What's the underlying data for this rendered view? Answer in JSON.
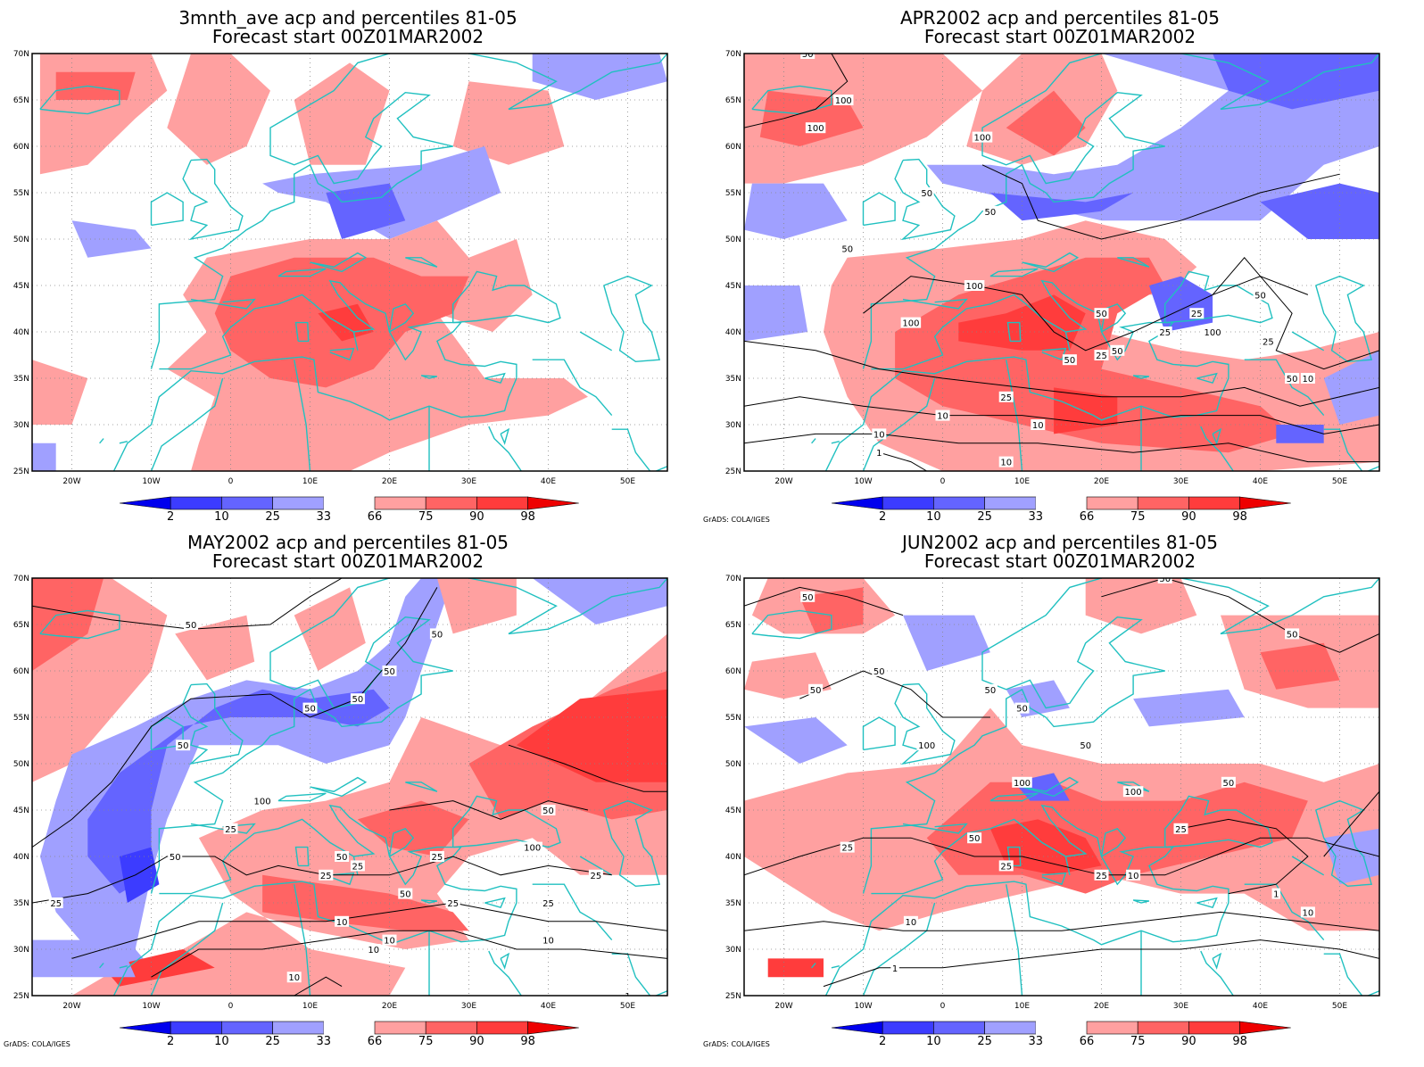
{
  "lat_labels": [
    "70N",
    "65N",
    "60N",
    "55N",
    "50N",
    "45N",
    "40N",
    "35N",
    "30N",
    "25N"
  ],
  "lon_labels": [
    "20W",
    "10W",
    "0",
    "10E",
    "20E",
    "30E",
    "40E",
    "50E"
  ],
  "colorbar": {
    "labels": [
      "2",
      "10",
      "25",
      "33",
      "66",
      "75",
      "90",
      "98"
    ],
    "colors": [
      "#0000ee",
      "#3c3cff",
      "#6464ff",
      "#a0a0ff",
      "#ffffff",
      "#ffa0a0",
      "#ff6464",
      "#ff3c3c",
      "#ee0000"
    ]
  },
  "panels": [
    {
      "title1": "3mnth_ave acp and percentiles 81-05",
      "title2": "Forecast start 00Z01MAR2002",
      "credit": "",
      "contour_labels": []
    },
    {
      "title1": "APR2002 acp and percentiles 81-05",
      "title2": "Forecast start 00Z01MAR2002",
      "credit": "GrADS: COLA/IGES",
      "contour_labels": [
        "50",
        "100",
        "100",
        "100",
        "50",
        "50",
        "50",
        "100",
        "100",
        "50",
        "50",
        "50",
        "25",
        "25",
        "100",
        "25",
        "25",
        "50",
        "50",
        "10",
        "10",
        "10",
        "25",
        "10",
        "1",
        "10"
      ]
    },
    {
      "title1": "MAY2002 acp and percentiles 81-05",
      "title2": "Forecast start 00Z01MAR2002",
      "credit": "GrADS: COLA/IGES",
      "contour_labels": [
        "50",
        "50",
        "50",
        "50",
        "50",
        "50",
        "100",
        "25",
        "50",
        "50",
        "25",
        "50",
        "25",
        "25",
        "10",
        "25",
        "25",
        "10",
        "10",
        "10",
        "25",
        "50",
        "100",
        "25",
        "10",
        "1"
      ]
    },
    {
      "title1": "JUN2002 acp and percentiles 81-05",
      "title2": "Forecast start 00Z01MAR2002",
      "credit": "GrADS: COLA/IGES",
      "contour_labels": [
        "50",
        "50",
        "50",
        "50",
        "50",
        "50",
        "50",
        "100",
        "100",
        "50",
        "100",
        "50",
        "25",
        "25",
        "25",
        "10",
        "50",
        "25",
        "10",
        "1",
        "10",
        "1"
      ]
    }
  ],
  "colors": {
    "coast": "#20c0c0",
    "contour": "#000000",
    "grid": "#888888"
  }
}
